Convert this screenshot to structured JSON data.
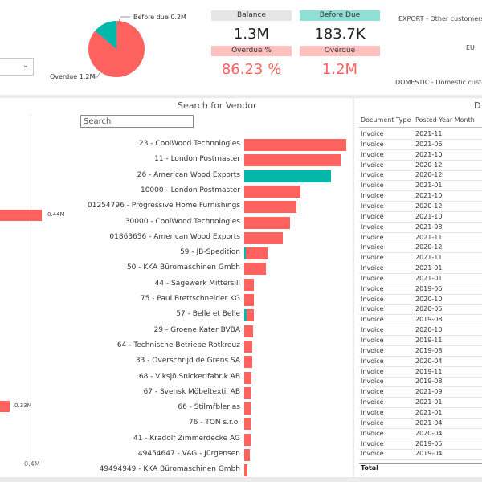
{
  "pie": {
    "before_due_label": "Before due 0.2M",
    "overdue_label": "Overdue 1.2M",
    "overdue_pct": 86.23,
    "colors": {
      "overdue": "#fd625e",
      "before_due": "#01b8aa"
    }
  },
  "kpis": {
    "balance": {
      "label": "Balance",
      "value": "1.3M"
    },
    "before_due": {
      "label": "Before Due",
      "value": "183.7K"
    },
    "overdue_pct": {
      "label": "Overdue %",
      "value": "86.23 %"
    },
    "overdue": {
      "label": "Overdue",
      "value": "1.2M"
    }
  },
  "regions": {
    "export": "EXPORT - Other customers",
    "eu": "EU",
    "domestic": "DOMESTIC - Domestic custo"
  },
  "left_chart": {
    "labels": [
      "0.44M",
      "0.33M"
    ],
    "axis_label": "0.4M"
  },
  "vendor_panel": {
    "title": "Search for Vendor",
    "search_placeholder": "Search"
  },
  "vendors": [
    {
      "name": "23 - CoolWood Technologies",
      "overdue": 0.185,
      "before_due": 0
    },
    {
      "name": "11 - London Postmaster",
      "overdue": 0.176,
      "before_due": 0
    },
    {
      "name": "26 - American Wood Exports",
      "overdue": 0,
      "before_due": 0.158
    },
    {
      "name": "10000 - London Postmaster",
      "overdue": 0.102,
      "before_due": 0
    },
    {
      "name": "01254796 - Progressive Home Furnishings",
      "overdue": 0.095,
      "before_due": 0
    },
    {
      "name": "30000 - CoolWood Technologies",
      "overdue": 0.083,
      "before_due": 0
    },
    {
      "name": "01863656 - American Wood Exports",
      "overdue": 0.07,
      "before_due": 0
    },
    {
      "name": "59 - JB-Spedition",
      "overdue": 0.04,
      "before_due": 0.002
    },
    {
      "name": "50 - KKA Büromaschinen Gmbh",
      "overdue": 0.04,
      "before_due": 0
    },
    {
      "name": "44 - Sägewerk Mittersill",
      "overdue": 0.018,
      "before_due": 0
    },
    {
      "name": "75 - Paul Brettschneider KG",
      "overdue": 0.017,
      "before_due": 0
    },
    {
      "name": "57 - Belle et Belle",
      "overdue": 0.014,
      "before_due": 0.004
    },
    {
      "name": "29 - Groene Kater BVBA",
      "overdue": 0.016,
      "before_due": 0
    },
    {
      "name": "64 - Technische Betriebe Rotkreuz",
      "overdue": 0.015,
      "before_due": 0
    },
    {
      "name": "33 - Overschrijd de Grens SA",
      "overdue": 0.014,
      "before_due": 0
    },
    {
      "name": "68 - Viksjö Snickerifabrik AB",
      "overdue": 0.013,
      "before_due": 0
    },
    {
      "name": "67 - Svensk Möbeltextil AB",
      "overdue": 0.012,
      "before_due": 0
    },
    {
      "name": "66 - Stilmřbler as",
      "overdue": 0.012,
      "before_due": 0
    },
    {
      "name": "76 - TON s.r.o.",
      "overdue": 0.011,
      "before_due": 0
    },
    {
      "name": "41 - Kradolf Zimmerdecke AG",
      "overdue": 0.011,
      "before_due": 0
    },
    {
      "name": "49454647 - VAG - Jürgensen",
      "overdue": 0.01,
      "before_due": 0
    },
    {
      "name": "49494949 - KKA Büromaschinen Gmbh",
      "overdue": 0.006,
      "before_due": 0
    }
  ],
  "table": {
    "title_partial": "D",
    "headers": [
      "Document Type",
      "Posted Year Month"
    ],
    "rows": [
      [
        "Invoice",
        "2021-11"
      ],
      [
        "Invoice",
        "2021-06"
      ],
      [
        "Invoice",
        "2021-10"
      ],
      [
        "Invoice",
        "2020-12"
      ],
      [
        "Invoice",
        "2020-12"
      ],
      [
        "Invoice",
        "2021-01"
      ],
      [
        "Invoice",
        "2021-10"
      ],
      [
        "Invoice",
        "2020-12"
      ],
      [
        "Invoice",
        "2021-10"
      ],
      [
        "Invoice",
        "2021-08"
      ],
      [
        "Invoice",
        "2021-11"
      ],
      [
        "Invoice",
        "2020-12"
      ],
      [
        "Invoice",
        "2021-11"
      ],
      [
        "Invoice",
        "2021-01"
      ],
      [
        "Invoice",
        "2021-01"
      ],
      [
        "Invoice",
        "2019-06"
      ],
      [
        "Invoice",
        "2020-10"
      ],
      [
        "Invoice",
        "2020-05"
      ],
      [
        "Invoice",
        "2019-08"
      ],
      [
        "Invoice",
        "2020-10"
      ],
      [
        "Invoice",
        "2019-11"
      ],
      [
        "Invoice",
        "2019-08"
      ],
      [
        "Invoice",
        "2020-04"
      ],
      [
        "Invoice",
        "2019-11"
      ],
      [
        "Invoice",
        "2019-08"
      ],
      [
        "Invoice",
        "2021-09"
      ],
      [
        "Invoice",
        "2021-01"
      ],
      [
        "Invoice",
        "2021-01"
      ],
      [
        "Invoice",
        "2021-04"
      ],
      [
        "Invoice",
        "2020-04"
      ],
      [
        "Invoice",
        "2019-05"
      ],
      [
        "Invoice",
        "2019-04"
      ]
    ],
    "total_label": "Total"
  }
}
